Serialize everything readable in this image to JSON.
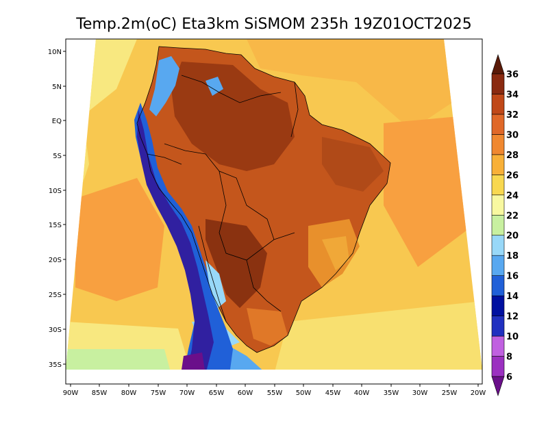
{
  "title": "Temp.2m(oC) Eta3km SiSMOM 235h 19Z01OCT2025",
  "lat_labels": [
    "10N",
    "5N",
    "EQ",
    "5S",
    "10S",
    "15S",
    "20S",
    "25S",
    "30S",
    "35S"
  ],
  "lon_labels": [
    "90W",
    "85W",
    "80W",
    "75W",
    "70W",
    "65W",
    "60W",
    "55W",
    "50W",
    "45W",
    "40W",
    "35W",
    "30W",
    "25W",
    "20W"
  ],
  "colorbar": {
    "labels": [
      "6",
      "8",
      "10",
      "12",
      "14",
      "16",
      "18",
      "20",
      "22",
      "24",
      "26",
      "28",
      "30",
      "32",
      "34",
      "36"
    ],
    "colors": [
      "#6a0f8a",
      "#9b30c0",
      "#c060e0",
      "#2030c0",
      "#0010a0",
      "#2060d8",
      "#58a8f0",
      "#98d8f8",
      "#c8f0a0",
      "#f8f8a0",
      "#f8d850",
      "#f8b038",
      "#f08830",
      "#e06828",
      "#c04818",
      "#8a2a10",
      "#5a1a08"
    ]
  },
  "field_colors": {
    "ocean_warm": "#f8c850",
    "ocean_mid": "#f8a040",
    "ocean_cool": "#f8e880",
    "land_hot": "#c4561c",
    "land_very_hot": "#8a3210",
    "andes_cold": "#2040c8",
    "andes_very_cold": "#6a0f8a"
  }
}
